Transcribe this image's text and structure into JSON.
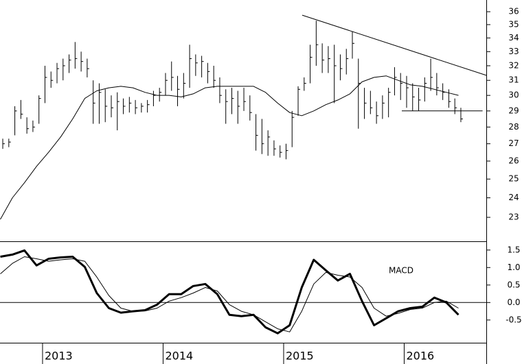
{
  "chart_data": [
    {
      "type": "ohlc",
      "color": "#000000",
      "log_scale": true,
      "xlim": [
        2012.647,
        2016.681
      ],
      "ylim": [
        21.83,
        36.93
      ],
      "yticks": [
        23,
        24,
        25,
        26,
        27,
        28,
        29,
        30,
        31,
        32,
        33,
        34,
        35,
        36
      ],
      "x": [
        2012.67,
        2012.72,
        2012.77,
        2012.82,
        2012.87,
        2012.92,
        2012.97,
        2013.02,
        2013.07,
        2013.12,
        2013.17,
        2013.22,
        2013.27,
        2013.32,
        2013.37,
        2013.42,
        2013.47,
        2013.52,
        2013.57,
        2013.62,
        2013.67,
        2013.72,
        2013.77,
        2013.82,
        2013.87,
        2013.92,
        2013.97,
        2014.02,
        2014.07,
        2014.12,
        2014.17,
        2014.22,
        2014.27,
        2014.32,
        2014.37,
        2014.42,
        2014.47,
        2014.52,
        2014.57,
        2014.62,
        2014.67,
        2014.72,
        2014.77,
        2014.82,
        2014.87,
        2014.92,
        2014.97,
        2015.02,
        2015.07,
        2015.12,
        2015.17,
        2015.22,
        2015.27,
        2015.32,
        2015.37,
        2015.42,
        2015.47,
        2015.52,
        2015.57,
        2015.62,
        2015.67,
        2015.72,
        2015.77,
        2015.82,
        2015.87,
        2015.92,
        2015.97,
        2016.02,
        2016.07,
        2016.12,
        2016.17,
        2016.22,
        2016.27,
        2016.32,
        2016.37,
        2016.42,
        2016.47
      ],
      "high": [
        27.3,
        27.3,
        29.3,
        29.7,
        28.6,
        28.4,
        30.0,
        32.0,
        31.6,
        32.2,
        32.5,
        32.8,
        33.7,
        33.0,
        32.5,
        31.0,
        30.8,
        30.4,
        30.0,
        30.2,
        29.8,
        29.9,
        29.7,
        29.5,
        29.7,
        30.3,
        30.5,
        31.5,
        32.3,
        31.3,
        31.5,
        33.5,
        32.8,
        32.7,
        32.2,
        32.0,
        31.2,
        30.4,
        30.5,
        30.3,
        30.5,
        30.0,
        28.8,
        28.5,
        27.8,
        27.2,
        26.9,
        27.0,
        29.0,
        30.6,
        31.2,
        33.5,
        35.3,
        33.6,
        33.4,
        33.5,
        32.8,
        33.2,
        34.5,
        32.5,
        30.5,
        30.3,
        29.6,
        30.0,
        30.5,
        31.9,
        31.5,
        31.3,
        30.8,
        30.5,
        31.2,
        32.5,
        31.5,
        30.8,
        30.4,
        29.8,
        29.2
      ],
      "low": [
        26.7,
        26.8,
        27.5,
        28.5,
        27.6,
        27.7,
        28.2,
        29.5,
        30.5,
        30.8,
        31.0,
        31.5,
        31.8,
        31.6,
        31.2,
        28.2,
        28.2,
        28.3,
        28.6,
        27.8,
        28.8,
        28.9,
        28.8,
        28.9,
        28.9,
        29.3,
        29.6,
        30.0,
        30.3,
        29.3,
        29.8,
        30.5,
        31.3,
        31.2,
        30.8,
        30.5,
        29.5,
        28.2,
        28.8,
        28.2,
        29.0,
        28.4,
        26.6,
        26.4,
        26.3,
        26.3,
        26.2,
        26.1,
        26.8,
        28.7,
        30.3,
        30.8,
        32.0,
        31.5,
        31.5,
        29.5,
        31.0,
        31.4,
        32.5,
        27.9,
        28.5,
        28.8,
        28.2,
        28.5,
        28.6,
        30.0,
        29.7,
        29.2,
        29.0,
        29.0,
        29.6,
        30.3,
        30.0,
        29.7,
        29.2,
        28.8,
        28.3
      ],
      "close": [
        27.0,
        27.1,
        29.0,
        28.8,
        27.9,
        28.0,
        29.8,
        31.2,
        31.0,
        31.8,
        32.0,
        32.4,
        32.5,
        32.3,
        31.8,
        29.5,
        30.2,
        29.3,
        29.2,
        29.6,
        29.3,
        29.5,
        29.2,
        29.3,
        29.4,
        30.0,
        30.2,
        31.0,
        31.2,
        30.4,
        30.8,
        32.5,
        32.2,
        32.3,
        31.6,
        31.0,
        30.0,
        29.6,
        29.8,
        29.3,
        29.6,
        28.9,
        27.5,
        27.0,
        27.4,
        26.7,
        26.5,
        26.6,
        28.6,
        30.4,
        30.8,
        32.6,
        33.5,
        32.4,
        32.5,
        32.0,
        31.8,
        32.5,
        33.6,
        30.8,
        29.5,
        29.2,
        28.7,
        29.5,
        30.2,
        31.2,
        30.8,
        30.5,
        29.9,
        29.7,
        30.8,
        31.2,
        30.5,
        30.2,
        29.6,
        29.2,
        28.5
      ],
      "overlays": [
        {
          "width": 1,
          "x": [
            2012.65,
            2012.75,
            2012.85,
            2012.95,
            2013.05,
            2013.15,
            2013.25,
            2013.35,
            2013.45,
            2013.55,
            2013.65,
            2013.75,
            2013.85,
            2013.95,
            2014.05,
            2014.15,
            2014.25,
            2014.35,
            2014.45,
            2014.55,
            2014.65,
            2014.75,
            2014.85,
            2014.95,
            2015.05,
            2015.15,
            2015.25,
            2015.35,
            2015.45,
            2015.55,
            2015.65,
            2015.75,
            2015.85,
            2015.95,
            2016.05,
            2016.15,
            2016.25,
            2016.35,
            2016.45
          ],
          "values": [
            22.9,
            24.0,
            24.8,
            25.7,
            26.5,
            27.4,
            28.5,
            29.8,
            30.3,
            30.5,
            30.6,
            30.5,
            30.2,
            30.0,
            30.0,
            29.9,
            30.1,
            30.5,
            30.6,
            30.6,
            30.6,
            30.6,
            30.2,
            29.5,
            28.9,
            28.7,
            29.0,
            29.4,
            29.7,
            30.1,
            30.9,
            31.2,
            31.3,
            31.0,
            30.7,
            30.6,
            30.4,
            30.2,
            30.0
          ]
        },
        {
          "width": 1,
          "x": [
            2015.154,
            2016.681
          ],
          "values": [
            35.73,
            31.34
          ]
        },
        {
          "width": 1,
          "x": [
            2015.98,
            2016.65
          ],
          "values": [
            29.0,
            29.0
          ]
        }
      ]
    },
    {
      "type": "line",
      "annotation": "MACD",
      "hline": 0,
      "xlim": [
        2012.647,
        2016.681
      ],
      "ylim": [
        -1.15,
        1.75
      ],
      "xticks": [
        2013,
        2014,
        2015,
        2016
      ],
      "yticks": [
        1.5,
        {
          "value": 1,
          "label": "1.0"
        },
        0.5,
        {
          "value": 0,
          "label": "0.0"
        },
        -0.5
      ],
      "x": [
        2012.65,
        2012.75,
        2012.85,
        2012.95,
        2013.05,
        2013.15,
        2013.25,
        2013.35,
        2013.45,
        2013.55,
        2013.65,
        2013.75,
        2013.85,
        2013.95,
        2014.05,
        2014.15,
        2014.25,
        2014.35,
        2014.45,
        2014.55,
        2014.65,
        2014.75,
        2014.85,
        2014.95,
        2015.05,
        2015.15,
        2015.25,
        2015.35,
        2015.45,
        2015.55,
        2015.65,
        2015.75,
        2015.85,
        2015.95,
        2016.05,
        2016.15,
        2016.25,
        2016.35,
        2016.45
      ],
      "series": [
        {
          "color": "#000000",
          "width": 3,
          "values": [
            1.31,
            1.37,
            1.49,
            1.06,
            1.25,
            1.29,
            1.31,
            1.02,
            0.27,
            -0.16,
            -0.29,
            -0.25,
            -0.22,
            -0.06,
            0.24,
            0.24,
            0.47,
            0.53,
            0.24,
            -0.35,
            -0.39,
            -0.35,
            -0.71,
            -0.88,
            -0.65,
            0.43,
            1.22,
            0.92,
            0.63,
            0.82,
            0.04,
            -0.65,
            -0.45,
            -0.25,
            -0.16,
            -0.12,
            0.14,
            0.0,
            -0.35
          ]
        },
        {
          "color": "#000000",
          "width": 1,
          "values": [
            0.82,
            1.12,
            1.31,
            1.25,
            1.18,
            1.22,
            1.25,
            1.18,
            0.73,
            0.2,
            -0.16,
            -0.25,
            -0.24,
            -0.16,
            0.04,
            0.14,
            0.27,
            0.43,
            0.33,
            -0.06,
            -0.25,
            -0.35,
            -0.55,
            -0.75,
            -0.84,
            -0.25,
            0.53,
            0.86,
            0.78,
            0.73,
            0.43,
            -0.16,
            -0.39,
            -0.31,
            -0.2,
            -0.16,
            0.0,
            0.04,
            -0.16
          ]
        }
      ]
    }
  ]
}
